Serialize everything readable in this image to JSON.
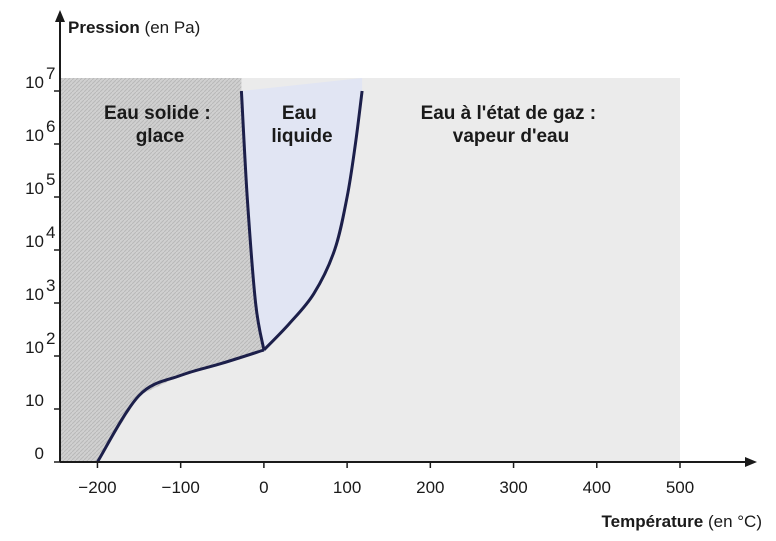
{
  "chart_data": {
    "type": "line",
    "title": "",
    "ylabel": {
      "main": "Pression",
      "unit": " (en Pa)"
    },
    "xlabel": {
      "main": "Température",
      "unit": " (en °C)"
    },
    "x_ticks": [
      "−200",
      "−100",
      "0",
      "100",
      "200",
      "300",
      "400",
      "500"
    ],
    "x_tick_values": [
      -200,
      -100,
      0,
      100,
      200,
      300,
      400,
      500
    ],
    "y_ticks": [
      {
        "value": 0,
        "base": "0",
        "exp": ""
      },
      {
        "value": 10,
        "base": "10",
        "exp": ""
      },
      {
        "value": 100,
        "base": "10",
        "exp": "2"
      },
      {
        "value": 1000,
        "base": "10",
        "exp": "3"
      },
      {
        "value": 10000,
        "base": "10",
        "exp": "4"
      },
      {
        "value": 100000,
        "base": "10",
        "exp": "5"
      },
      {
        "value": 1000000,
        "base": "10",
        "exp": "6"
      },
      {
        "value": 10000000,
        "base": "10",
        "exp": "7"
      }
    ],
    "xlim": [
      -245,
      500
    ],
    "regions": [
      {
        "name": "Eau solide : glace",
        "lines": [
          "Eau solide :",
          "glace"
        ],
        "color": "#d3d3d3",
        "hatched": true
      },
      {
        "name": "Eau liquide",
        "lines": [
          "Eau",
          "liquide"
        ],
        "color": "#e1e5f3"
      },
      {
        "name": "Eau à l'état de gaz : vapeur d'eau",
        "lines": [
          "Eau à l'état de gaz :",
          "vapeur d'eau"
        ],
        "color": "#e9e9e9"
      }
    ],
    "series": [
      {
        "type": "sublimation",
        "points": [
          [
            -200,
            0
          ],
          [
            -150,
            18
          ],
          [
            -100,
            43
          ],
          [
            -50,
            73
          ],
          [
            0,
            130
          ]
        ]
      },
      {
        "type": "melting",
        "points": [
          [
            0,
            130
          ],
          [
            -10,
            1000
          ],
          [
            -20,
            100000
          ],
          [
            -27,
            10000000
          ]
        ]
      },
      {
        "type": "vaporization",
        "points": [
          [
            0,
            130
          ],
          [
            30,
            400
          ],
          [
            60,
            1500
          ],
          [
            85,
            10000
          ],
          [
            100,
            100000
          ],
          [
            110,
            1000000
          ],
          [
            118,
            10000000
          ]
        ]
      }
    ],
    "colors": {
      "curve": "#1c1f4a",
      "axis": "#1a1a1a"
    }
  }
}
